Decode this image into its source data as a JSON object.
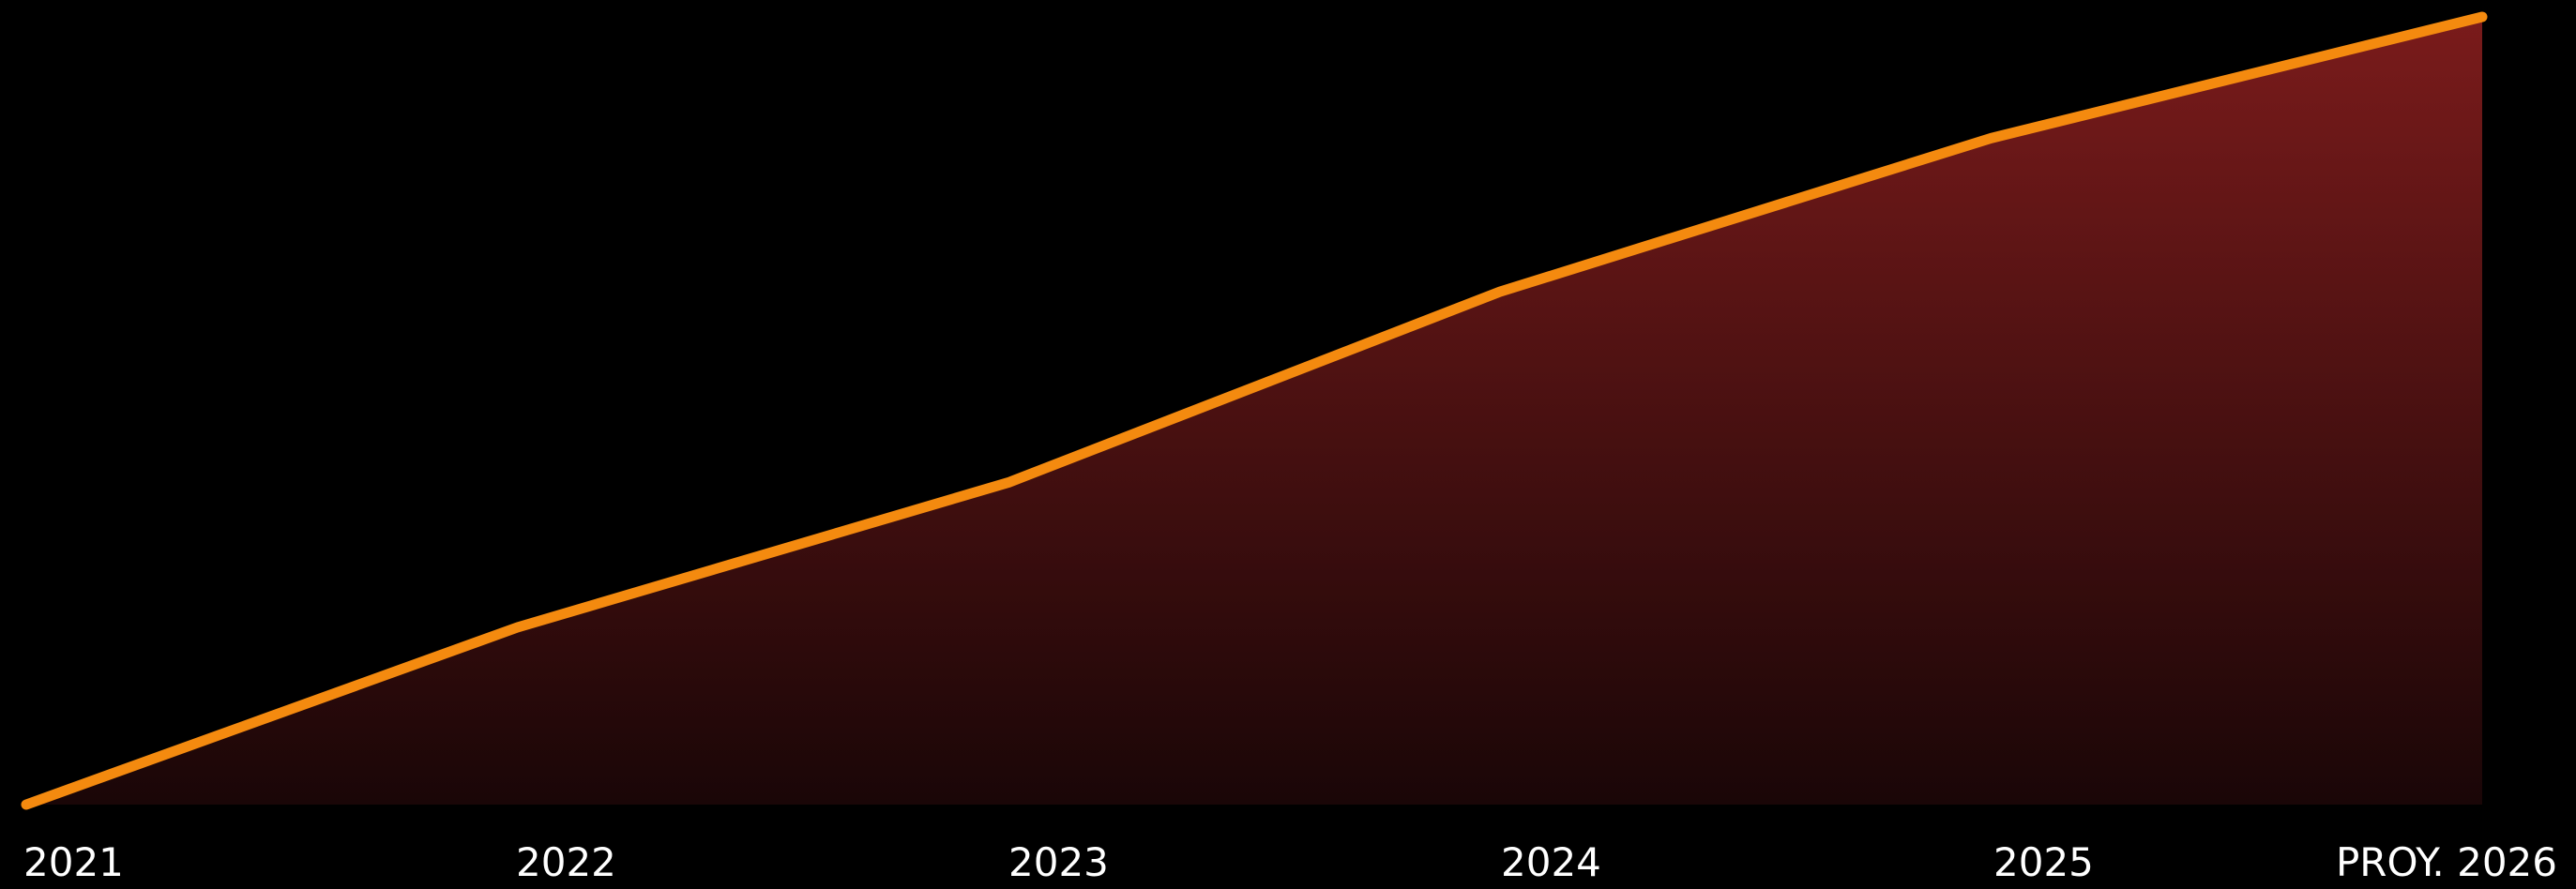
{
  "chart_data": {
    "type": "area",
    "title": "",
    "xlabel": "",
    "ylabel": "",
    "grid": false,
    "legend": "none",
    "categories": [
      "2021",
      "2022",
      "2023",
      "2024",
      "2025",
      "PROY. 2026"
    ],
    "x_tick_labels": [
      "2021",
      "2022",
      "2023",
      "2024",
      "2025",
      "PROY. 2026"
    ],
    "values": [
      0,
      22.5,
      40.9,
      65.1,
      84.6,
      100
    ],
    "ylim": [
      0,
      100
    ],
    "colors": {
      "background": "#000000",
      "line": "#f48a0f",
      "fill_top": "#7a1b1b",
      "fill_bottom": "#1a0607",
      "tick_text": "#ffffff"
    }
  }
}
